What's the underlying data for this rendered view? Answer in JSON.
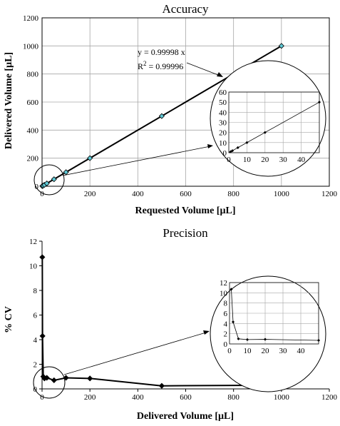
{
  "chart_data": [
    {
      "type": "scatter",
      "title": "Accuracy",
      "xlabel": "Requested Volume [µL]",
      "ylabel": "Delivered Volume [µL]",
      "xlim": [
        0,
        1200
      ],
      "ylim": [
        0,
        1200
      ],
      "xticks": [
        0,
        200,
        400,
        600,
        800,
        1000,
        1200
      ],
      "yticks": [
        0,
        200,
        400,
        600,
        800,
        1000,
        1200
      ],
      "grid": true,
      "series": [
        {
          "x": [
            1,
            2,
            5,
            10,
            20,
            50,
            100,
            200,
            500,
            1000
          ],
          "y": [
            1.0,
            2.0,
            5.0,
            10.0,
            20.0,
            50.0,
            100.0,
            200.0,
            500.0,
            1000.0
          ]
        }
      ],
      "trendline": {
        "slope": 0.99998
      },
      "annotation": {
        "equation": "y = 0.99998 x",
        "r2_prefix": "R",
        "r2_exp": "2",
        "r2_value": " = 0.99996"
      },
      "inset": {
        "xlim": [
          0,
          50
        ],
        "ylim": [
          0,
          60
        ],
        "xticks": [
          0,
          10,
          20,
          30,
          40
        ],
        "yticks": [
          0,
          10,
          20,
          30,
          40,
          50,
          60
        ]
      }
    },
    {
      "type": "line",
      "title": "Precision",
      "xlabel": "Delivered Volume [µL]",
      "ylabel": "% CV",
      "xlim": [
        0,
        1200
      ],
      "ylim": [
        0,
        12
      ],
      "xticks": [
        0,
        200,
        400,
        600,
        800,
        1000,
        1200
      ],
      "yticks": [
        0,
        2,
        4,
        6,
        8,
        10,
        12
      ],
      "grid": false,
      "series": [
        {
          "x": [
            1,
            2,
            5,
            10,
            20,
            50,
            100,
            200,
            500,
            1000
          ],
          "y": [
            10.7,
            4.3,
            1.0,
            0.85,
            0.9,
            0.7,
            0.9,
            0.85,
            0.25,
            0.3
          ]
        }
      ],
      "inset": {
        "xlim": [
          0,
          50
        ],
        "ylim": [
          0,
          12
        ],
        "xticks": [
          0,
          10,
          20,
          30,
          40
        ],
        "yticks": [
          0,
          2,
          4,
          6,
          8,
          10,
          12
        ]
      }
    }
  ],
  "colors": {
    "marker_fill_accuracy": "#5fc9d6",
    "marker_stroke": "#000000",
    "grid": "#a6a6a6",
    "axis": "#000000"
  }
}
